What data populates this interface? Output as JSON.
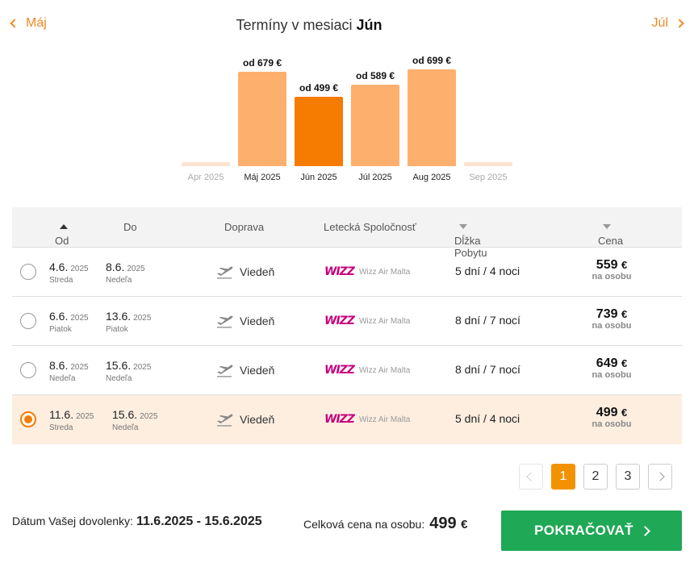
{
  "header": {
    "prev_label": "Máj",
    "next_label": "Júl",
    "title_prefix": "Termíny v mesiaci",
    "title_month": "Jún"
  },
  "chart_data": {
    "type": "bar",
    "categories": [
      "Apr 2025",
      "Máj 2025",
      "Jún 2025",
      "Júl 2025",
      "Aug 2025",
      "Sep 2025"
    ],
    "values": [
      null,
      679,
      499,
      589,
      699,
      null
    ],
    "value_labels": [
      "",
      "od 679 €",
      "od 499 €",
      "od 589 €",
      "od 699 €",
      ""
    ],
    "selected_index": 2,
    "colors": {
      "bar": "#fdb06e",
      "selected": "#f57c00",
      "empty": "#fde3cf"
    }
  },
  "table": {
    "headers": {
      "from": "Od",
      "to": "Do",
      "transport": "Doprava",
      "airline": "Letecká Spoločnosť",
      "stay": "Dĺžka Pobytu",
      "price": "Cena"
    },
    "rows": [
      {
        "from_date": "4.6.",
        "from_year": "2025",
        "from_day": "Streda",
        "to_date": "8.6.",
        "to_year": "2025",
        "to_day": "Nedeľa",
        "transport": "Viedeň",
        "airline_logo": "WIZZ",
        "airline_name": "Wizz Air Malta",
        "stay_days": "5 dní",
        "stay_nights": "4 noci",
        "price": "559",
        "currency": "€",
        "per": "na osobu",
        "selected": false
      },
      {
        "from_date": "6.6.",
        "from_year": "2025",
        "from_day": "Piatok",
        "to_date": "13.6.",
        "to_year": "2025",
        "to_day": "Piatok",
        "transport": "Viedeň",
        "airline_logo": "WIZZ",
        "airline_name": "Wizz Air Malta",
        "stay_days": "8 dní",
        "stay_nights": "7 nocí",
        "price": "739",
        "currency": "€",
        "per": "na osobu",
        "selected": false
      },
      {
        "from_date": "8.6.",
        "from_year": "2025",
        "from_day": "Nedeľa",
        "to_date": "15.6.",
        "to_year": "2025",
        "to_day": "Nedeľa",
        "transport": "Viedeň",
        "airline_logo": "WIZZ",
        "airline_name": "Wizz Air Malta",
        "stay_days": "8 dní",
        "stay_nights": "7 nocí",
        "price": "649",
        "currency": "€",
        "per": "na osobu",
        "selected": false
      },
      {
        "from_date": "11.6.",
        "from_year": "2025",
        "from_day": "Streda",
        "to_date": "15.6.",
        "to_year": "2025",
        "to_day": "Nedeľa",
        "transport": "Viedeň",
        "airline_logo": "WIZZ",
        "airline_name": "Wizz Air Malta",
        "stay_days": "5 dní",
        "stay_nights": "4 noci",
        "price": "499",
        "currency": "€",
        "per": "na osobu",
        "selected": true
      }
    ]
  },
  "pagination": {
    "pages": [
      "1",
      "2",
      "3"
    ],
    "current": "1"
  },
  "footer": {
    "date_label": "Dátum Vašej dovolenky:",
    "date_value": "11.6.2025 - 15.6.2025",
    "price_label": "Celková cena na osobu:",
    "price_value": "499",
    "currency": "€",
    "cta_label": "POKRAČOVAŤ"
  }
}
